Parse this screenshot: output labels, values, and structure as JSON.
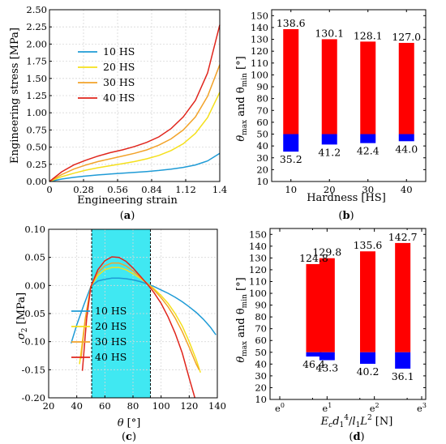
{
  "panels": {
    "a": "(a)",
    "b": "(b)",
    "c": "(c)",
    "d": "(d)"
  },
  "chart_data": [
    {
      "id": "a",
      "type": "line",
      "xlabel": "Engineering strain",
      "ylabel": "Engineering stress [MPa]",
      "xlim": [
        0,
        1.4
      ],
      "ylim": [
        0,
        2.5
      ],
      "xticks": [
        "0",
        "0.28",
        "0.56",
        "0.84",
        "1.12",
        "1.4"
      ],
      "xtick_values": [
        0,
        0.28,
        0.56,
        0.84,
        1.12,
        1.4
      ],
      "yticks": [
        "0.00",
        "0.25",
        "0.50",
        "0.75",
        "1.00",
        "1.25",
        "1.50",
        "1.75",
        "2.00",
        "2.25",
        "2.50"
      ],
      "ytick_values": [
        0,
        0.25,
        0.5,
        0.75,
        1.0,
        1.25,
        1.5,
        1.75,
        2.0,
        2.25,
        2.5
      ],
      "legend": "upper-left",
      "grid": true,
      "series": [
        {
          "name": "10 HS",
          "color": "#1f9bd6",
          "x": [
            0,
            0.1,
            0.2,
            0.3,
            0.4,
            0.5,
            0.6,
            0.7,
            0.8,
            0.9,
            1.0,
            1.1,
            1.2,
            1.3,
            1.4
          ],
          "y": [
            0,
            0.035,
            0.06,
            0.08,
            0.095,
            0.108,
            0.12,
            0.132,
            0.145,
            0.16,
            0.18,
            0.205,
            0.24,
            0.3,
            0.41
          ]
        },
        {
          "name": "20 HS",
          "color": "#f5e01c",
          "x": [
            0,
            0.1,
            0.2,
            0.3,
            0.4,
            0.5,
            0.6,
            0.7,
            0.8,
            0.9,
            1.0,
            1.1,
            1.2,
            1.3,
            1.4
          ],
          "y": [
            0,
            0.07,
            0.12,
            0.165,
            0.2,
            0.23,
            0.26,
            0.29,
            0.33,
            0.38,
            0.45,
            0.55,
            0.7,
            0.93,
            1.3
          ]
        },
        {
          "name": "30 HS",
          "color": "#f2a32a",
          "x": [
            0,
            0.1,
            0.2,
            0.3,
            0.4,
            0.5,
            0.6,
            0.7,
            0.8,
            0.9,
            1.0,
            1.1,
            1.2,
            1.3,
            1.4
          ],
          "y": [
            0,
            0.1,
            0.18,
            0.24,
            0.29,
            0.33,
            0.37,
            0.41,
            0.46,
            0.53,
            0.62,
            0.75,
            0.94,
            1.24,
            1.7
          ]
        },
        {
          "name": "40 HS",
          "color": "#e0251c",
          "x": [
            0,
            0.1,
            0.2,
            0.3,
            0.4,
            0.5,
            0.6,
            0.7,
            0.8,
            0.9,
            1.0,
            1.1,
            1.2,
            1.3,
            1.4
          ],
          "y": [
            0,
            0.14,
            0.24,
            0.31,
            0.37,
            0.42,
            0.46,
            0.51,
            0.57,
            0.65,
            0.77,
            0.94,
            1.18,
            1.58,
            2.28
          ]
        }
      ]
    },
    {
      "id": "b",
      "type": "bar",
      "xlabel": "Hardness [HS]",
      "ylabel_main": "θ",
      "ylabel_sub1": "max",
      "ylabel_mid": " and θ",
      "ylabel_sub2": "min",
      "ylabel_end": " [°]",
      "categories": [
        "10",
        "20",
        "30",
        "40"
      ],
      "x": [
        10,
        20,
        30,
        40
      ],
      "xlim": [
        5,
        45
      ],
      "ylim": [
        10,
        155
      ],
      "yticks": [
        "10",
        "20",
        "30",
        "40",
        "50",
        "60",
        "70",
        "80",
        "90",
        "100",
        "110",
        "120",
        "130",
        "140",
        "150"
      ],
      "ytick_values": [
        10,
        20,
        30,
        40,
        50,
        60,
        70,
        80,
        90,
        100,
        110,
        120,
        130,
        140,
        150
      ],
      "band_top": 50,
      "colors": {
        "max": "#ff0000",
        "min": "#0000ff"
      },
      "series": [
        {
          "name": "θmax",
          "values": [
            138.6,
            130.1,
            128.1,
            127.0
          ],
          "labels": [
            "138.6",
            "130.1",
            "128.1",
            "127.0"
          ]
        },
        {
          "name": "θmin",
          "values": [
            35.2,
            41.2,
            42.4,
            44.0
          ],
          "labels": [
            "35.2",
            "41.2",
            "42.4",
            "44.0"
          ]
        }
      ]
    },
    {
      "id": "c",
      "type": "line",
      "xlabel_main": "θ",
      "xlabel_end": " [°]",
      "ylabel_main": "σ",
      "ylabel_sub": "2",
      "ylabel_end": " [MPa]",
      "xlim": [
        20,
        140
      ],
      "ylim": [
        -0.2,
        0.1
      ],
      "xticks": [
        "20",
        "40",
        "60",
        "80",
        "100",
        "120",
        "140"
      ],
      "xtick_values": [
        20,
        40,
        60,
        80,
        100,
        120,
        140
      ],
      "yticks": [
        "-0.20",
        "-0.15",
        "-0.10",
        "-0.05",
        "0.00",
        "0.05",
        "0.10"
      ],
      "ytick_values": [
        -0.2,
        -0.15,
        -0.1,
        -0.05,
        0.0,
        0.05,
        0.1
      ],
      "highlight": {
        "x0": 50.6,
        "x1": 92.4,
        "color": "#40e8f2"
      },
      "legend": "lower-left",
      "grid": true,
      "series": [
        {
          "name": "10 HS",
          "color": "#1f9bd6",
          "x": [
            36,
            40,
            45,
            50,
            55,
            60,
            65,
            70,
            75,
            80,
            85,
            90,
            95,
            100,
            105,
            110,
            115,
            120,
            125,
            130,
            135,
            139
          ],
          "y": [
            -0.103,
            -0.07,
            -0.035,
            -0.002,
            0.008,
            0.011,
            0.013,
            0.013,
            0.012,
            0.01,
            0.007,
            0.003,
            -0.002,
            -0.008,
            -0.014,
            -0.021,
            -0.029,
            -0.038,
            -0.048,
            -0.06,
            -0.074,
            -0.088
          ]
        },
        {
          "name": "20 HS",
          "color": "#f5e01c",
          "x": [
            42,
            46,
            50,
            55,
            60,
            65,
            70,
            75,
            80,
            85,
            90,
            95,
            100,
            105,
            110,
            115,
            120,
            125,
            128
          ],
          "y": [
            -0.14,
            -0.06,
            -0.002,
            0.018,
            0.028,
            0.032,
            0.032,
            0.028,
            0.021,
            0.013,
            0.004,
            -0.006,
            -0.018,
            -0.032,
            -0.05,
            -0.072,
            -0.1,
            -0.132,
            -0.155
          ]
        },
        {
          "name": "30 HS",
          "color": "#f2a32a",
          "x": [
            43,
            46,
            50,
            55,
            60,
            65,
            70,
            75,
            80,
            85,
            90,
            95,
            100,
            105,
            110,
            115,
            120,
            125,
            127
          ],
          "y": [
            -0.13,
            -0.06,
            -0.002,
            0.023,
            0.035,
            0.04,
            0.04,
            0.035,
            0.026,
            0.015,
            0.004,
            -0.008,
            -0.022,
            -0.038,
            -0.058,
            -0.082,
            -0.11,
            -0.14,
            -0.15
          ]
        },
        {
          "name": "40 HS",
          "color": "#e0251c",
          "x": [
            44,
            47,
            50,
            55,
            60,
            65,
            70,
            75,
            80,
            85,
            90,
            95,
            100,
            105,
            110,
            115,
            120,
            124
          ],
          "y": [
            -0.152,
            -0.06,
            -0.002,
            0.028,
            0.044,
            0.051,
            0.05,
            0.043,
            0.031,
            0.017,
            0.003,
            -0.013,
            -0.032,
            -0.056,
            -0.085,
            -0.12,
            -0.165,
            -0.2
          ]
        }
      ]
    },
    {
      "id": "d",
      "type": "bar",
      "xlabel_main": "E",
      "xlabel_sub_c": "c",
      "xlabel_d": "d",
      "xlabel_sub_1a": "1",
      "xlabel_sup_4": "4",
      "xlabel_slash": "/",
      "xlabel_l": "l",
      "xlabel_sub_1b": "1",
      "xlabel_L": "L",
      "xlabel_sup_2": "2",
      "xlabel_end": " [N]",
      "ylabel_main": "θ",
      "ylabel_sub1": "max",
      "ylabel_mid": " and θ",
      "ylabel_sub2": "min",
      "ylabel_end": " [°]",
      "xscale": "log (natural)",
      "xlim": [
        0,
        3
      ],
      "xticks": [
        {
          "base": "e",
          "exp": "0"
        },
        {
          "base": "e",
          "exp": "1"
        },
        {
          "base": "e",
          "exp": "2"
        },
        {
          "base": "e",
          "exp": "3"
        }
      ],
      "xtick_values": [
        0,
        1,
        2,
        3
      ],
      "x_ln": [
        0.72,
        1.0,
        1.86,
        2.6
      ],
      "ylim": [
        10,
        155
      ],
      "yticks": [
        "10",
        "20",
        "30",
        "40",
        "50",
        "60",
        "70",
        "80",
        "90",
        "100",
        "110",
        "120",
        "130",
        "140",
        "150"
      ],
      "ytick_values": [
        10,
        20,
        30,
        40,
        50,
        60,
        70,
        80,
        90,
        100,
        110,
        120,
        130,
        140,
        150
      ],
      "band_top": 50,
      "colors": {
        "max": "#ff0000",
        "min": "#0000ff"
      },
      "series": [
        {
          "name": "θmax",
          "values": [
            124.8,
            129.8,
            135.6,
            142.7
          ],
          "labels": [
            "124.8",
            "129.8",
            "135.6",
            "142.7"
          ]
        },
        {
          "name": "θmin",
          "values": [
            46.4,
            43.3,
            40.2,
            36.1
          ],
          "labels": [
            "46.4",
            "43.3",
            "40.2",
            "36.1"
          ]
        }
      ]
    }
  ]
}
